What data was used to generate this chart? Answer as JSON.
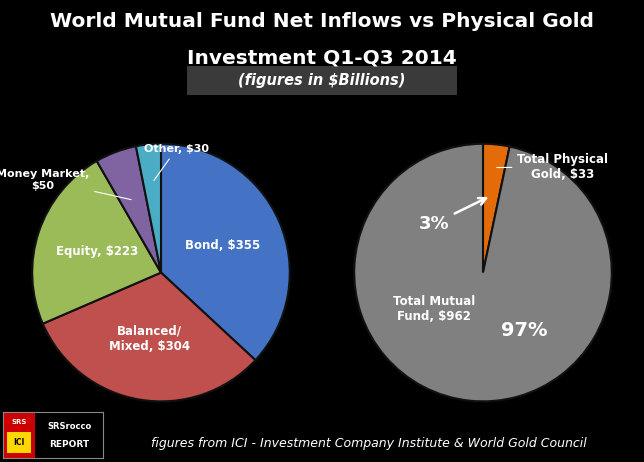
{
  "title_line1": "World Mutual Fund Net Inflows vs Physical Gold",
  "title_line2": "Investment Q1-Q3 2014",
  "subtitle": "(figures in $Billions)",
  "background_color": "#000000",
  "title_color": "#ffffff",
  "subtitle_bg": "#404040",
  "left_pie": {
    "labels": [
      "Bond, $355",
      "Balanced/\nMixed, $304",
      "Equity, $223",
      "Money Market,\n$50",
      "Other, $30"
    ],
    "values": [
      355,
      304,
      223,
      50,
      30
    ],
    "colors": [
      "#4472C4",
      "#C0504D",
      "#9BBB59",
      "#8064A2",
      "#4BACC6"
    ]
  },
  "right_pie": {
    "labels": [
      "Total Physical\nGold, $33",
      "Total Mutual\nFund, $962"
    ],
    "values": [
      33,
      962
    ],
    "colors": [
      "#E36C09",
      "#808080"
    ],
    "pct_labels": [
      "3%",
      "97%"
    ]
  },
  "footer_text": "figures from ICI - Investment Company Institute & World Gold Council",
  "footer_color": "#ffffff",
  "footer_fontsize": 9
}
